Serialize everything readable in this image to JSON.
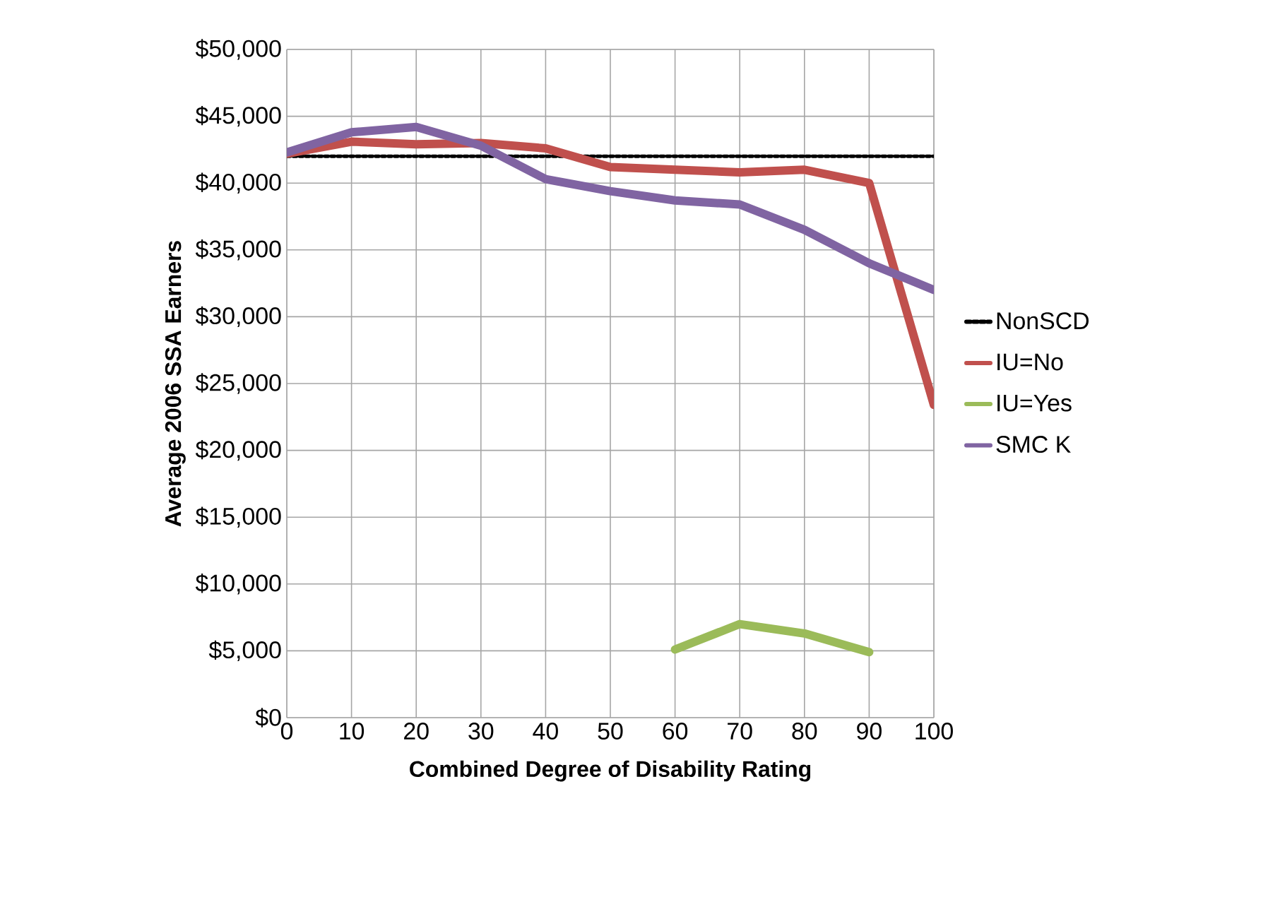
{
  "chart_data": {
    "type": "line",
    "xlabel": "Combined Degree of Disability Rating",
    "ylabel": "Average 2006 SSA Earners",
    "x": [
      0,
      10,
      20,
      30,
      40,
      50,
      60,
      70,
      80,
      90,
      100
    ],
    "xlim": [
      0,
      100
    ],
    "xticks": [
      0,
      10,
      20,
      30,
      40,
      50,
      60,
      70,
      80,
      90,
      100
    ],
    "ylim": [
      0,
      50000
    ],
    "yticks": [
      {
        "value": 0,
        "label": "$0"
      },
      {
        "value": 5000,
        "label": "$5,000"
      },
      {
        "value": 10000,
        "label": "$10,000"
      },
      {
        "value": 15000,
        "label": "$15,000"
      },
      {
        "value": 20000,
        "label": "$20,000"
      },
      {
        "value": 25000,
        "label": "$25,000"
      },
      {
        "value": 30000,
        "label": "$30,000"
      },
      {
        "value": 35000,
        "label": "$35,000"
      },
      {
        "value": 40000,
        "label": "$40,000"
      },
      {
        "value": 45000,
        "label": "$45,000"
      },
      {
        "value": 50000,
        "label": "$50,000"
      }
    ],
    "grid": true,
    "legend": "right",
    "series": [
      {
        "name": "NonSCD",
        "color": "#000000",
        "line_style": "dotted",
        "values": [
          42000,
          42000,
          42000,
          42000,
          42000,
          42000,
          42000,
          42000,
          42000,
          42000,
          42000
        ]
      },
      {
        "name": "IU=No",
        "color": "#c0504d",
        "values": [
          42200,
          43100,
          42900,
          43000,
          42600,
          41200,
          41000,
          40800,
          41000,
          40000,
          23400
        ]
      },
      {
        "name": "IU=Yes",
        "color": "#9bbb59",
        "values": [
          null,
          null,
          null,
          null,
          null,
          null,
          5100,
          7000,
          6300,
          4900,
          null
        ]
      },
      {
        "name": "SMC K",
        "color": "#8064a2",
        "values": [
          42300,
          43800,
          44200,
          42800,
          40300,
          39400,
          38700,
          38400,
          36500,
          34000,
          32000
        ]
      }
    ]
  }
}
